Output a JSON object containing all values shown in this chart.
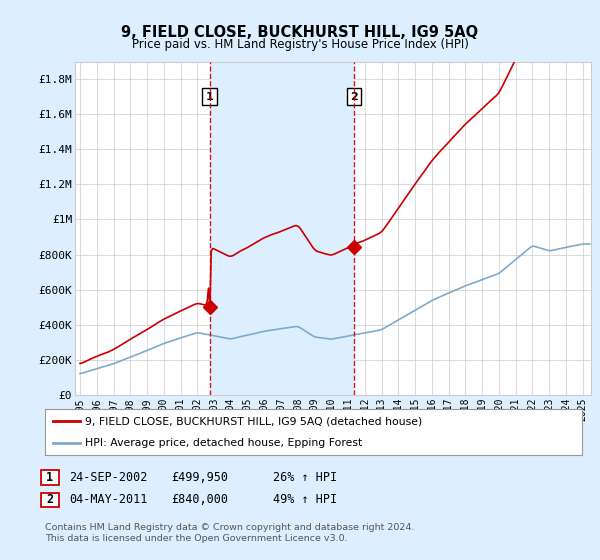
{
  "title": "9, FIELD CLOSE, BUCKHURST HILL, IG9 5AQ",
  "subtitle": "Price paid vs. HM Land Registry's House Price Index (HPI)",
  "ylabel_ticks": [
    "£0",
    "£200K",
    "£400K",
    "£600K",
    "£800K",
    "£1M",
    "£1.2M",
    "£1.4M",
    "£1.6M",
    "£1.8M"
  ],
  "ytick_values": [
    0,
    200000,
    400000,
    600000,
    800000,
    1000000,
    1200000,
    1400000,
    1600000,
    1800000
  ],
  "ylim": [
    0,
    1900000
  ],
  "xlim_start": 1994.7,
  "xlim_end": 2025.5,
  "sale1_year": 2002.73,
  "sale1_price": 499950,
  "sale2_year": 2011.34,
  "sale2_price": 840000,
  "sale1_label": "1",
  "sale2_label": "2",
  "sale1_date": "24-SEP-2002",
  "sale1_amount": "£499,950",
  "sale1_hpi": "26% ↑ HPI",
  "sale2_date": "04-MAY-2011",
  "sale2_amount": "£840,000",
  "sale2_hpi": "49% ↑ HPI",
  "legend_line1": "9, FIELD CLOSE, BUCKHURST HILL, IG9 5AQ (detached house)",
  "legend_line2": "HPI: Average price, detached house, Epping Forest",
  "footer1": "Contains HM Land Registry data © Crown copyright and database right 2024.",
  "footer2": "This data is licensed under the Open Government Licence v3.0.",
  "line_red_color": "#cc0000",
  "line_blue_color": "#7faacc",
  "vline_color": "#cc0000",
  "shade_color": "#ddeeff",
  "background_color": "#ddeeff",
  "plot_bg_color": "#ffffff",
  "grid_color": "#cccccc"
}
